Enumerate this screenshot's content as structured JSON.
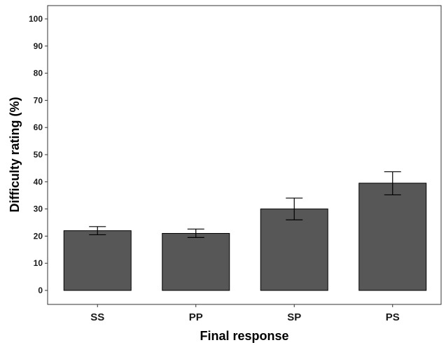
{
  "chart_data": {
    "type": "bar",
    "title": "",
    "xlabel": "Final response",
    "ylabel": "Difficulty rating (%)",
    "categories": [
      "SS",
      "PP",
      "SP",
      "PS"
    ],
    "values": [
      22,
      21,
      30,
      39.5
    ],
    "error_low": [
      20.5,
      19.5,
      26,
      35.2
    ],
    "error_high": [
      23.5,
      22.6,
      34,
      43.7
    ],
    "ylim": [
      0,
      100
    ],
    "yticks": [
      "0",
      "10",
      "20",
      "30",
      "40",
      "50",
      "60",
      "70",
      "80",
      "90",
      "100"
    ],
    "bar_color": "#575757",
    "grid": false,
    "legend": "none"
  }
}
